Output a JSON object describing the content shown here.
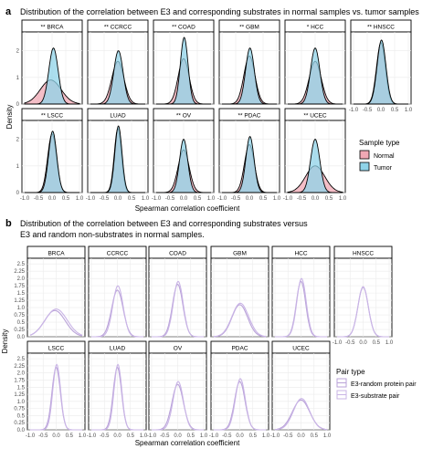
{
  "panel_a": {
    "letter": "a",
    "title": "Distribution of the correlation between E3 and corresponding substrates in normal samples vs. tumor samples",
    "ylabel": "Density",
    "xlabel": "Spearman correlation coefficient",
    "legend": {
      "title": "Sample type",
      "items": [
        {
          "label": "Normal",
          "color": "#f0a8b4"
        },
        {
          "label": "Tumor",
          "color": "#8fd3e8"
        }
      ]
    }
  },
  "panel_b": {
    "letter": "b",
    "title_line1": "Distribution of the correlation between E3 and corresponding substrates versus",
    "title_line2": "E3 and random non-substrates in normal samples.",
    "ylabel": "Density",
    "xlabel": "Spearman correlation coefficient",
    "legend": {
      "title": "Pair type",
      "items": [
        {
          "label": "E3-random protein pair",
          "color": "#b9a2d8"
        },
        {
          "label": "E3-substrate pair",
          "color": "#c9b4e6"
        }
      ]
    }
  },
  "chart_data": [
    {
      "type": "area",
      "panel": "a",
      "x_ticks": [
        "-1.0",
        "-0.5",
        "0.0",
        "0.5",
        "1.0"
      ],
      "y_ticks": [
        "0",
        "1",
        "2"
      ],
      "xlim": [
        -1.0,
        1.0
      ],
      "ylim": [
        0,
        2.6
      ],
      "facets": [
        {
          "label": "** BRCA",
          "series": [
            {
              "name": "Normal",
              "mean": -0.05,
              "sd": 0.38,
              "peak": 0.9
            },
            {
              "name": "Tumor",
              "mean": 0.05,
              "sd": 0.17,
              "peak": 2.1
            }
          ]
        },
        {
          "label": "** CCRCC",
          "series": [
            {
              "name": "Normal",
              "mean": 0.0,
              "sd": 0.22,
              "peak": 1.6
            },
            {
              "name": "Tumor",
              "mean": 0.02,
              "sd": 0.17,
              "peak": 2.0
            }
          ]
        },
        {
          "label": "** COAD",
          "series": [
            {
              "name": "Normal",
              "mean": 0.0,
              "sd": 0.2,
              "peak": 1.7
            },
            {
              "name": "Tumor",
              "mean": 0.02,
              "sd": 0.14,
              "peak": 2.5
            }
          ]
        },
        {
          "label": "** GBM",
          "series": [
            {
              "name": "Normal",
              "mean": 0.0,
              "sd": 0.2,
              "peak": 1.8
            },
            {
              "name": "Tumor",
              "mean": 0.02,
              "sd": 0.16,
              "peak": 2.1
            }
          ]
        },
        {
          "label": "* HCC",
          "series": [
            {
              "name": "Normal",
              "mean": 0.0,
              "sd": 0.22,
              "peak": 1.6
            },
            {
              "name": "Tumor",
              "mean": 0.0,
              "sd": 0.17,
              "peak": 2.1
            }
          ]
        },
        {
          "label": "** HNSCC",
          "series": [
            {
              "name": "Normal",
              "mean": 0.0,
              "sd": 0.16,
              "peak": 2.3
            },
            {
              "name": "Tumor",
              "mean": 0.02,
              "sd": 0.16,
              "peak": 2.4
            }
          ]
        },
        {
          "label": "** LSCC",
          "series": [
            {
              "name": "Normal",
              "mean": 0.0,
              "sd": 0.16,
              "peak": 2.2
            },
            {
              "name": "Tumor",
              "mean": 0.02,
              "sd": 0.15,
              "peak": 2.3
            }
          ]
        },
        {
          "label": "LUAD",
          "series": [
            {
              "name": "Normal",
              "mean": 0.0,
              "sd": 0.13,
              "peak": 2.4
            },
            {
              "name": "Tumor",
              "mean": 0.02,
              "sd": 0.13,
              "peak": 2.5
            }
          ]
        },
        {
          "label": "** OV",
          "series": [
            {
              "name": "Normal",
              "mean": 0.0,
              "sd": 0.2,
              "peak": 1.6
            },
            {
              "name": "Tumor",
              "mean": 0.0,
              "sd": 0.15,
              "peak": 2.0
            }
          ]
        },
        {
          "label": "** PDAC",
          "series": [
            {
              "name": "Normal",
              "mean": 0.0,
              "sd": 0.18,
              "peak": 1.8
            },
            {
              "name": "Tumor",
              "mean": 0.02,
              "sd": 0.15,
              "peak": 2.1
            }
          ]
        },
        {
          "label": "** UCEC",
          "series": [
            {
              "name": "Normal",
              "mean": 0.0,
              "sd": 0.35,
              "peak": 1.0
            },
            {
              "name": "Tumor",
              "mean": 0.0,
              "sd": 0.17,
              "peak": 2.0
            }
          ]
        }
      ]
    },
    {
      "type": "line",
      "panel": "b",
      "x_ticks": [
        "-1.0",
        "-0.5",
        "0.0",
        "0.5",
        "1.0"
      ],
      "y_ticks": [
        "0.0",
        "0.25",
        "0.5",
        "0.75",
        "1.0",
        "1.25",
        "1.5",
        "1.75",
        "2.0",
        "2.25",
        "2.5"
      ],
      "xlim": [
        -1.0,
        1.0
      ],
      "ylim": [
        0,
        2.6
      ],
      "facets": [
        {
          "label": "BRCA",
          "series": [
            {
              "name": "E3-random protein pair",
              "mean": -0.05,
              "sd": 0.4,
              "peak": 0.9
            },
            {
              "name": "E3-substrate pair",
              "mean": 0.0,
              "sd": 0.42,
              "peak": 0.95
            }
          ]
        },
        {
          "label": "CCRCC",
          "series": [
            {
              "name": "E3-random protein pair",
              "mean": 0.0,
              "sd": 0.22,
              "peak": 1.6
            },
            {
              "name": "E3-substrate pair",
              "mean": 0.02,
              "sd": 0.2,
              "peak": 1.75
            }
          ]
        },
        {
          "label": "COAD",
          "series": [
            {
              "name": "E3-random protein pair",
              "mean": 0.0,
              "sd": 0.2,
              "peak": 1.8
            },
            {
              "name": "E3-substrate pair",
              "mean": 0.02,
              "sd": 0.19,
              "peak": 1.9
            }
          ]
        },
        {
          "label": "GBM",
          "series": [
            {
              "name": "E3-random protein pair",
              "mean": 0.0,
              "sd": 0.3,
              "peak": 1.1
            },
            {
              "name": "E3-substrate pair",
              "mean": 0.02,
              "sd": 0.32,
              "peak": 1.15
            }
          ]
        },
        {
          "label": "HCC",
          "series": [
            {
              "name": "E3-random protein pair",
              "mean": 0.0,
              "sd": 0.18,
              "peak": 1.9
            },
            {
              "name": "E3-substrate pair",
              "mean": 0.02,
              "sd": 0.18,
              "peak": 2.0
            }
          ]
        },
        {
          "label": "HNSCC",
          "series": [
            {
              "name": "E3-random protein pair",
              "mean": 0.0,
              "sd": 0.2,
              "peak": 1.7
            },
            {
              "name": "E3-substrate pair",
              "mean": 0.0,
              "sd": 0.2,
              "peak": 1.72
            }
          ]
        },
        {
          "label": "LSCC",
          "series": [
            {
              "name": "E3-random protein pair",
              "mean": 0.0,
              "sd": 0.16,
              "peak": 2.2
            },
            {
              "name": "E3-substrate pair",
              "mean": 0.02,
              "sd": 0.15,
              "peak": 2.3
            }
          ]
        },
        {
          "label": "LUAD",
          "series": [
            {
              "name": "E3-random protein pair",
              "mean": 0.0,
              "sd": 0.16,
              "peak": 2.2
            },
            {
              "name": "E3-substrate pair",
              "mean": 0.02,
              "sd": 0.15,
              "peak": 2.3
            }
          ]
        },
        {
          "label": "OV",
          "series": [
            {
              "name": "E3-random protein pair",
              "mean": 0.0,
              "sd": 0.22,
              "peak": 1.6
            },
            {
              "name": "E3-substrate pair",
              "mean": 0.02,
              "sd": 0.2,
              "peak": 1.7
            }
          ]
        },
        {
          "label": "PDAC",
          "series": [
            {
              "name": "E3-random protein pair",
              "mean": 0.0,
              "sd": 0.2,
              "peak": 1.7
            },
            {
              "name": "E3-substrate pair",
              "mean": 0.02,
              "sd": 0.19,
              "peak": 1.8
            }
          ]
        },
        {
          "label": "UCEC",
          "series": [
            {
              "name": "E3-random protein pair",
              "mean": 0.0,
              "sd": 0.33,
              "peak": 1.05
            },
            {
              "name": "E3-substrate pair",
              "mean": 0.02,
              "sd": 0.31,
              "peak": 1.1
            }
          ]
        }
      ]
    }
  ]
}
